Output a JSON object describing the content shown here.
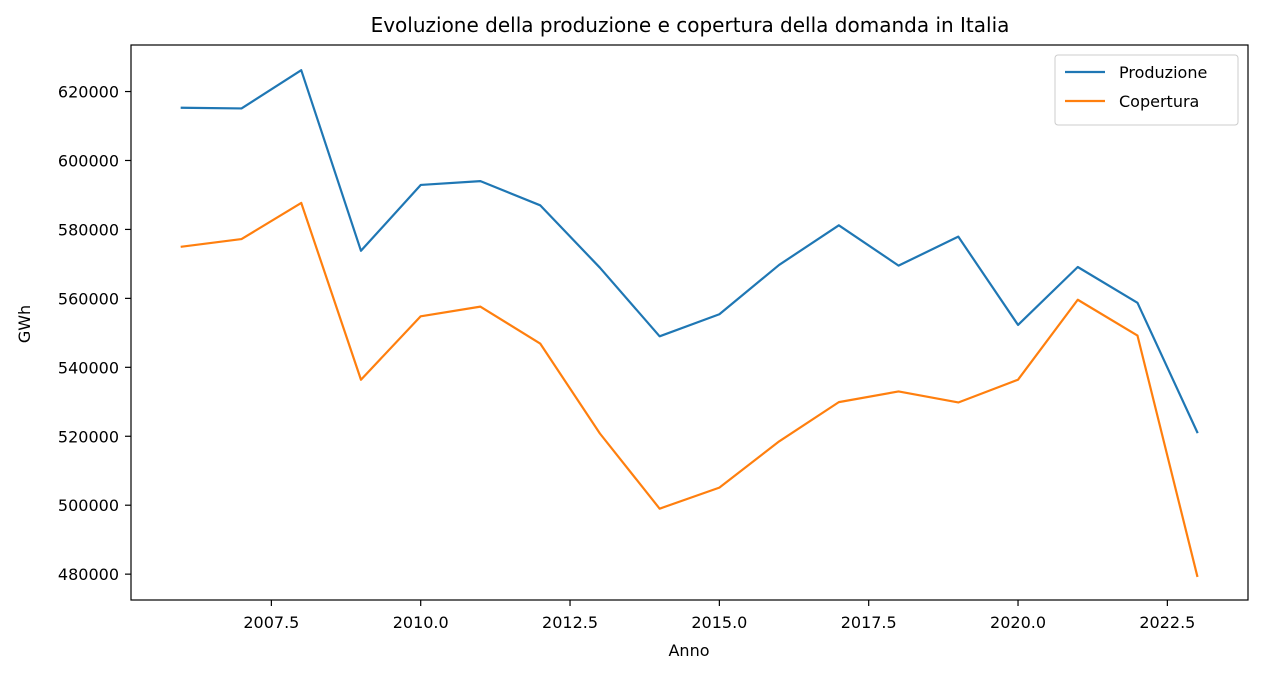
{
  "chart_data": {
    "type": "line",
    "title": "Evoluzione della produzione e copertura della domanda in Italia",
    "xlabel": "Anno",
    "ylabel": "GWh",
    "xlim": [
      2005.15,
      2023.85
    ],
    "ylim": [
      472500,
      633500
    ],
    "xticks": [
      2007.5,
      2010.0,
      2012.5,
      2015.0,
      2017.5,
      2020.0,
      2022.5
    ],
    "xtick_labels": [
      "2007.5",
      "2010.0",
      "2012.5",
      "2015.0",
      "2017.5",
      "2020.0",
      "2022.5"
    ],
    "yticks": [
      480000,
      500000,
      520000,
      540000,
      560000,
      580000,
      600000,
      620000
    ],
    "ytick_labels": [
      "480000",
      "500000",
      "520000",
      "540000",
      "560000",
      "580000",
      "600000",
      "620000"
    ],
    "grid": false,
    "legend_position": "top-right",
    "x": [
      2006,
      2007,
      2008,
      2009,
      2010,
      2011,
      2012,
      2013,
      2014,
      2015,
      2016,
      2017,
      2018,
      2019,
      2020,
      2021,
      2022,
      2023
    ],
    "series": [
      {
        "name": "Produzione",
        "color": "#1f77b4",
        "values": [
          615300,
          615100,
          626200,
          573800,
          592900,
          594000,
          587000,
          568900,
          549000,
          555400,
          569700,
          581200,
          569500,
          577900,
          552300,
          569100,
          558700,
          521200
        ]
      },
      {
        "name": "Copertura",
        "color": "#ff7f0e",
        "values": [
          575000,
          577200,
          587700,
          536400,
          554800,
          557600,
          546900,
          520800,
          499000,
          505100,
          518500,
          529900,
          533000,
          529800,
          536400,
          559600,
          549200,
          479500
        ]
      }
    ]
  }
}
